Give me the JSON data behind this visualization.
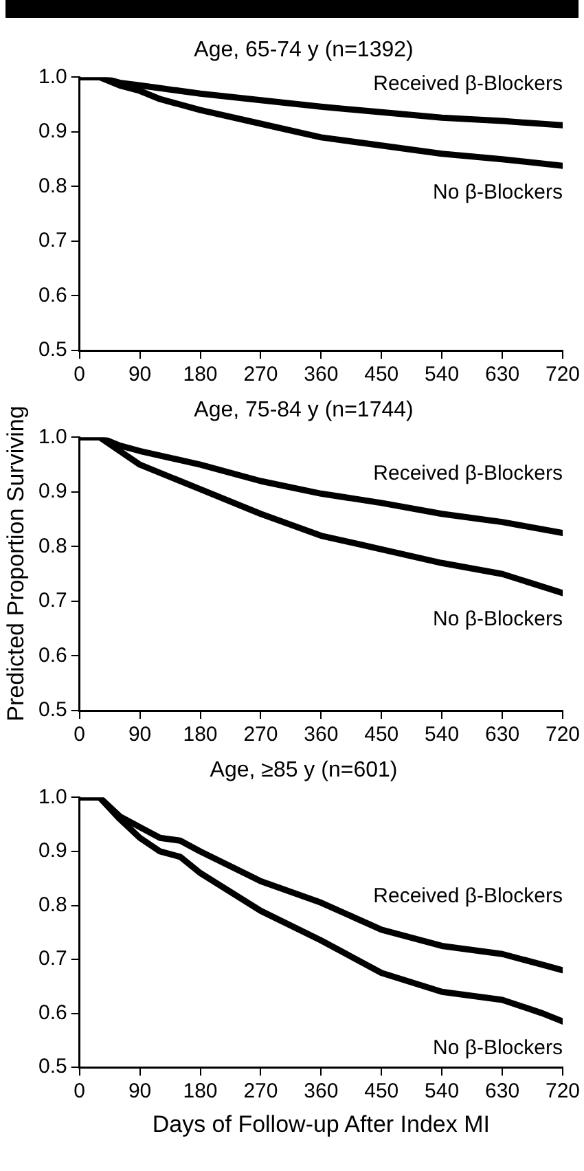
{
  "chart_data": [
    {
      "type": "line",
      "title": "Age, 65-74 y (n=1392)",
      "xlim": [
        0,
        720
      ],
      "xticks": [
        0,
        90,
        180,
        270,
        360,
        450,
        540,
        630,
        720
      ],
      "ylim": [
        0.5,
        1.0
      ],
      "yticks": [
        {
          "value": 0.5,
          "label": "0.5"
        },
        {
          "value": 0.6,
          "label": "0.6"
        },
        {
          "value": 0.7,
          "label": "0.7"
        },
        {
          "value": 0.8,
          "label": "0.8"
        },
        {
          "value": 0.9,
          "label": "0.9"
        },
        {
          "value": 1.0,
          "label": "1.0"
        }
      ],
      "grid": false,
      "legend": false,
      "marker": "none",
      "line_style": "solid",
      "series": [
        {
          "name": "Received β-Blockers",
          "color": "#000000",
          "x": [
            0,
            30,
            60,
            90,
            120,
            180,
            270,
            360,
            450,
            540,
            630,
            720
          ],
          "values": [
            1,
            1,
            0.99,
            0.985,
            0.98,
            0.97,
            0.958,
            0.946,
            0.936,
            0.926,
            0.92,
            0.912
          ]
        },
        {
          "name": "No β-Blockers",
          "color": "#000000",
          "x": [
            0,
            30,
            60,
            90,
            120,
            180,
            270,
            360,
            450,
            540,
            630,
            720
          ],
          "values": [
            1,
            1,
            0.985,
            0.975,
            0.96,
            0.94,
            0.915,
            0.89,
            0.875,
            0.86,
            0.85,
            0.838
          ]
        }
      ]
    },
    {
      "type": "line",
      "title": "Age, 75-84 y (n=1744)",
      "ylabel": "Predicted Proportion Surviving",
      "xlim": [
        0,
        720
      ],
      "xticks": [
        0,
        90,
        180,
        270,
        360,
        450,
        540,
        630,
        720
      ],
      "ylim": [
        0.5,
        1.0
      ],
      "yticks": [
        {
          "value": 0.5,
          "label": "0.5"
        },
        {
          "value": 0.6,
          "label": "0.6"
        },
        {
          "value": 0.7,
          "label": "0.7"
        },
        {
          "value": 0.8,
          "label": "0.8"
        },
        {
          "value": 0.9,
          "label": "0.9"
        },
        {
          "value": 1.0,
          "label": "1.0"
        }
      ],
      "grid": false,
      "legend": false,
      "marker": "none",
      "line_style": "solid",
      "series": [
        {
          "name": "Received β-Blockers",
          "color": "#000000",
          "x": [
            0,
            30,
            60,
            90,
            180,
            270,
            360,
            450,
            540,
            630,
            720
          ],
          "values": [
            1,
            1,
            0.985,
            0.975,
            0.95,
            0.92,
            0.897,
            0.88,
            0.86,
            0.845,
            0.825
          ]
        },
        {
          "name": "No β-Blockers",
          "color": "#000000",
          "x": [
            0,
            30,
            60,
            90,
            180,
            270,
            360,
            450,
            540,
            630,
            720
          ],
          "values": [
            1,
            1,
            0.975,
            0.95,
            0.905,
            0.86,
            0.82,
            0.795,
            0.77,
            0.75,
            0.715
          ]
        }
      ]
    },
    {
      "type": "line",
      "title": "Age, ≥85 y (n=601)",
      "xlabel": "Days of Follow-up After Index MI",
      "xlim": [
        0,
        720
      ],
      "xticks": [
        0,
        90,
        180,
        270,
        360,
        450,
        540,
        630,
        720
      ],
      "ylim": [
        0.5,
        1.0
      ],
      "yticks": [
        {
          "value": 0.5,
          "label": "0.5"
        },
        {
          "value": 0.6,
          "label": "0.6"
        },
        {
          "value": 0.7,
          "label": "0.7"
        },
        {
          "value": 0.8,
          "label": "0.8"
        },
        {
          "value": 0.9,
          "label": "0.9"
        },
        {
          "value": 1.0,
          "label": "1.0"
        }
      ],
      "grid": false,
      "legend": false,
      "marker": "none",
      "line_style": "solid",
      "series": [
        {
          "name": "Received β-Blockers",
          "color": "#000000",
          "x": [
            0,
            30,
            60,
            90,
            120,
            150,
            180,
            270,
            360,
            450,
            540,
            630,
            690,
            720
          ],
          "values": [
            1,
            1,
            0.965,
            0.945,
            0.925,
            0.92,
            0.9,
            0.845,
            0.805,
            0.755,
            0.725,
            0.71,
            0.69,
            0.68
          ]
        },
        {
          "name": "No β-Blockers",
          "color": "#000000",
          "x": [
            0,
            30,
            60,
            90,
            120,
            150,
            180,
            270,
            360,
            450,
            540,
            630,
            690,
            720
          ],
          "values": [
            1,
            1,
            0.96,
            0.925,
            0.9,
            0.89,
            0.86,
            0.79,
            0.735,
            0.675,
            0.64,
            0.625,
            0.6,
            0.585
          ]
        }
      ]
    }
  ]
}
